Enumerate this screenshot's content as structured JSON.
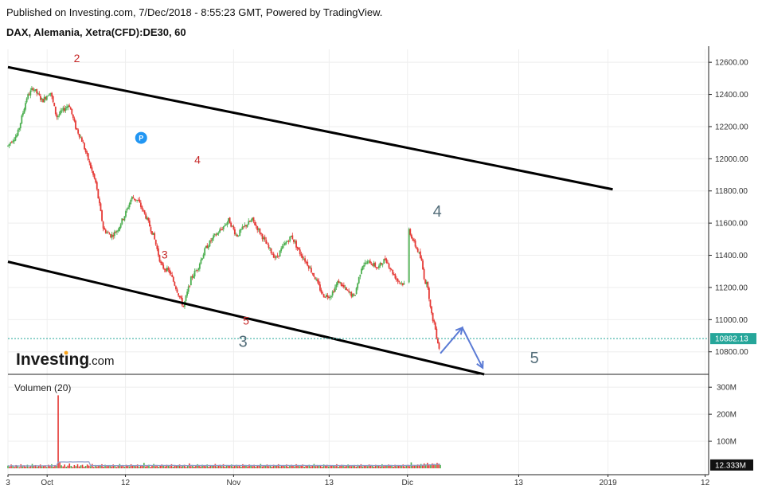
{
  "header": {
    "published": "Published on Investing.com, 7/Dec/2018 - 8:55:23 GMT, Powered by TradingView.",
    "symbol": "DAX, Alemania, Xetra(CFD):DE30, 60"
  },
  "watermark": {
    "brand": "Investing",
    "suffix": ".com"
  },
  "marker_label": "P",
  "colors": {
    "up": "#4caf50",
    "down": "#e53935",
    "last_price": "#26a69a",
    "projection": "#5b7bd5",
    "channel": "#000000",
    "wave_red": "#c62828",
    "wave_grey": "#546e7a"
  },
  "chart_data": [
    {
      "type": "line",
      "title": "",
      "price_axis": {
        "ticks": [
          "12600.00",
          "12400.00",
          "12200.00",
          "12000.00",
          "11800.00",
          "11600.00",
          "11400.00",
          "11200.00",
          "11000.00",
          "10800.00"
        ],
        "ylim": [
          10660,
          12680
        ],
        "last_price_label": "10882.13",
        "last_price": 10882.13
      },
      "time_axis": {
        "ticks": [
          "3",
          "Oct",
          "12",
          "Nov",
          "13",
          "Dic",
          "13",
          "2019",
          "12"
        ],
        "ticks_day": [
          0,
          25,
          75,
          144,
          205,
          255,
          326,
          383,
          445
        ]
      },
      "price_path": [
        {
          "d": 0,
          "p": 12080
        },
        {
          "d": 2,
          "p": 12110
        },
        {
          "d": 6,
          "p": 12150
        },
        {
          "d": 12,
          "p": 12380
        },
        {
          "d": 16,
          "p": 12440
        },
        {
          "d": 22,
          "p": 12360
        },
        {
          "d": 27,
          "p": 12420
        },
        {
          "d": 31,
          "p": 12260
        },
        {
          "d": 35,
          "p": 12300
        },
        {
          "d": 39,
          "p": 12340
        },
        {
          "d": 43,
          "p": 12200
        },
        {
          "d": 47,
          "p": 12120
        },
        {
          "d": 51,
          "p": 12000
        },
        {
          "d": 56,
          "p": 11850
        },
        {
          "d": 61,
          "p": 11560
        },
        {
          "d": 66,
          "p": 11520
        },
        {
          "d": 70,
          "p": 11560
        },
        {
          "d": 75,
          "p": 11660
        },
        {
          "d": 79,
          "p": 11760
        },
        {
          "d": 83,
          "p": 11740
        },
        {
          "d": 88,
          "p": 11640
        },
        {
          "d": 93,
          "p": 11520
        },
        {
          "d": 98,
          "p": 11330
        },
        {
          "d": 103,
          "p": 11300
        },
        {
          "d": 108,
          "p": 11180
        },
        {
          "d": 112,
          "p": 11080
        },
        {
          "d": 117,
          "p": 11260
        },
        {
          "d": 121,
          "p": 11320
        },
        {
          "d": 126,
          "p": 11440
        },
        {
          "d": 131,
          "p": 11510
        },
        {
          "d": 136,
          "p": 11560
        },
        {
          "d": 141,
          "p": 11620
        },
        {
          "d": 146,
          "p": 11520
        },
        {
          "d": 151,
          "p": 11580
        },
        {
          "d": 156,
          "p": 11620
        },
        {
          "d": 161,
          "p": 11540
        },
        {
          "d": 166,
          "p": 11450
        },
        {
          "d": 171,
          "p": 11380
        },
        {
          "d": 176,
          "p": 11460
        },
        {
          "d": 181,
          "p": 11520
        },
        {
          "d": 186,
          "p": 11420
        },
        {
          "d": 191,
          "p": 11350
        },
        {
          "d": 196,
          "p": 11260
        },
        {
          "d": 201,
          "p": 11150
        },
        {
          "d": 206,
          "p": 11150
        },
        {
          "d": 211,
          "p": 11240
        },
        {
          "d": 216,
          "p": 11180
        },
        {
          "d": 221,
          "p": 11140
        },
        {
          "d": 226,
          "p": 11340
        },
        {
          "d": 231,
          "p": 11360
        },
        {
          "d": 236,
          "p": 11320
        },
        {
          "d": 241,
          "p": 11380
        },
        {
          "d": 245,
          "p": 11300
        },
        {
          "d": 249,
          "p": 11240
        },
        {
          "d": 253,
          "p": 11220
        },
        {
          "d": 256,
          "p": 11560
        },
        {
          "d": 259,
          "p": 11480
        },
        {
          "d": 262,
          "p": 11420
        },
        {
          "d": 264,
          "p": 11360
        },
        {
          "d": 266,
          "p": 11240
        },
        {
          "d": 268,
          "p": 11210
        },
        {
          "d": 270,
          "p": 11040
        },
        {
          "d": 272,
          "p": 10980
        },
        {
          "d": 274,
          "p": 10880
        },
        {
          "d": 276,
          "p": 10790
        }
      ],
      "volume": {
        "label": "Volumen (20)",
        "ticks": [
          "300M",
          "200M",
          "100M"
        ],
        "ylim": [
          0,
          330
        ],
        "last_value_label": "12.333M",
        "last_value": 12.333,
        "spike": {
          "d": 31,
          "v": 270
        },
        "values": [
          10,
          6,
          14,
          8,
          5,
          12,
          9,
          4,
          15,
          7,
          11,
          6,
          13,
          5,
          9,
          16,
          8,
          12,
          6,
          10,
          14,
          7,
          9,
          11,
          5,
          13,
          8,
          15,
          6,
          12,
          9,
          270,
          22,
          11,
          7,
          14,
          6,
          10,
          18,
          9,
          5,
          12,
          8,
          15,
          7,
          11,
          13,
          6,
          9,
          14,
          10,
          8,
          16,
          5,
          12,
          7,
          11,
          9,
          15,
          6,
          13,
          8,
          10,
          12,
          7,
          14,
          9,
          5,
          11,
          16,
          8,
          12,
          6,
          13,
          10,
          7,
          15,
          9,
          11,
          8,
          14,
          6,
          12,
          10,
          20,
          7,
          9,
          13,
          5,
          11,
          16,
          8,
          12,
          6,
          10,
          14,
          9,
          7,
          13,
          11,
          8,
          15,
          6,
          12,
          10,
          9,
          14,
          7,
          11,
          13,
          5,
          10,
          18,
          8,
          12,
          6,
          9,
          15,
          11,
          7,
          13,
          10,
          8,
          14,
          6,
          12,
          9,
          11,
          16,
          7,
          10,
          13,
          8,
          15,
          6,
          12,
          9,
          11,
          14,
          7,
          10,
          13,
          8,
          12,
          6,
          15,
          9,
          11,
          7,
          14,
          10,
          8,
          13,
          6,
          12,
          9,
          16,
          7,
          11,
          10,
          14,
          8,
          12,
          6,
          13,
          9,
          11,
          15,
          7,
          10,
          12,
          8,
          14,
          6,
          9,
          13,
          11,
          7,
          15,
          10,
          8,
          12,
          14,
          6,
          11,
          9,
          13,
          7,
          10,
          16,
          8,
          12,
          9,
          11,
          6,
          14,
          10,
          13,
          7,
          12,
          9,
          11,
          8,
          15,
          6,
          10,
          13,
          12,
          7,
          9,
          14,
          11,
          8,
          10,
          12,
          6,
          13,
          9,
          15,
          7,
          11,
          10,
          8,
          14,
          12,
          9,
          6,
          13,
          11,
          10,
          7,
          15,
          8,
          12,
          9,
          14,
          10,
          11,
          6,
          13,
          8,
          12,
          9,
          10,
          14,
          7,
          11,
          13,
          8,
          22,
          9,
          12,
          10,
          14,
          11,
          16,
          12,
          18,
          14,
          20,
          15,
          12,
          18,
          16,
          14,
          20,
          17,
          12
        ]
      },
      "channel": {
        "upper": [
          {
            "d": 0,
            "p": 12570
          },
          {
            "d": 386,
            "p": 11810
          }
        ],
        "lower": [
          {
            "d": 0,
            "p": 11360
          },
          {
            "d": 304,
            "p": 10660
          }
        ]
      },
      "projection": [
        {
          "d": 276,
          "p": 10790
        },
        {
          "d": 290,
          "p": 10950
        },
        {
          "d": 303,
          "p": 10700
        }
      ],
      "wave_labels": [
        {
          "text": "2",
          "d": 44,
          "p": 12600,
          "color": "red"
        },
        {
          "text": "3",
          "d": 100,
          "p": 11380,
          "color": "red"
        },
        {
          "text": "4",
          "d": 121,
          "p": 11970,
          "color": "red"
        },
        {
          "text": "5",
          "d": 152,
          "p": 10970,
          "color": "red"
        },
        {
          "text": "3",
          "d": 150,
          "p": 10830,
          "color": "grey"
        },
        {
          "text": "4",
          "d": 274,
          "p": 11640,
          "color": "grey"
        },
        {
          "text": "5",
          "d": 336,
          "p": 10730,
          "color": "grey"
        }
      ],
      "p_marker": {
        "d": 85,
        "p": 12130
      }
    }
  ]
}
